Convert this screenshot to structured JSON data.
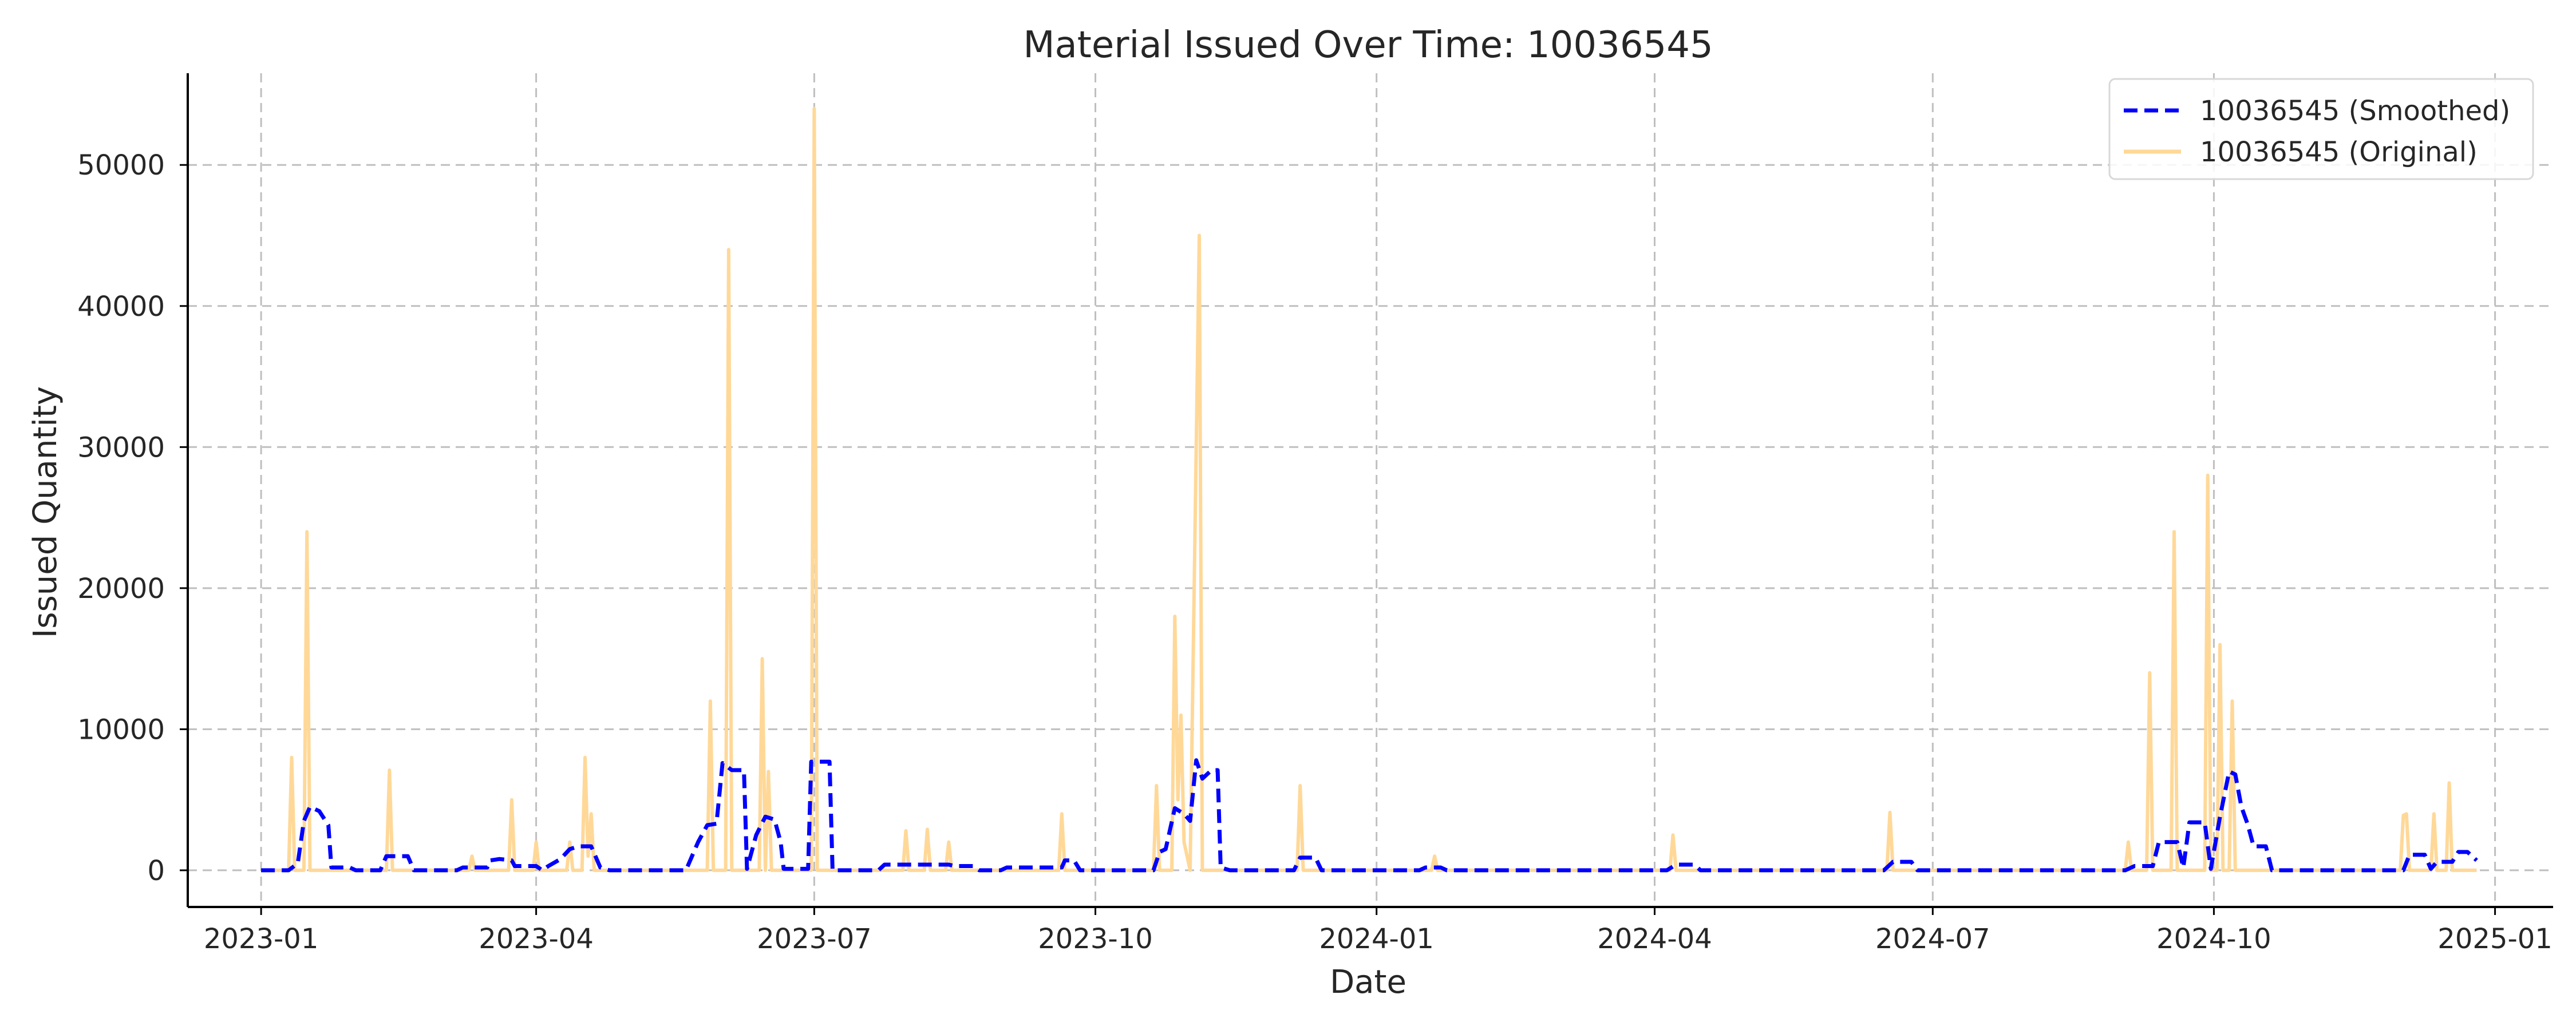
{
  "chart_data": {
    "type": "line",
    "title": "Material Issued Over Time: 10036545",
    "xlabel": "Date",
    "ylabel": "Issued Quantity",
    "x_axis": "date",
    "xlim": [
      "2022-12-08",
      "2025-01-20"
    ],
    "ylim": [
      -2600,
      56500
    ],
    "x_ticks": [
      "2023-01",
      "2023-04",
      "2023-07",
      "2023-10",
      "2024-01",
      "2024-04",
      "2024-07",
      "2024-10",
      "2025-01"
    ],
    "y_ticks": [
      0,
      10000,
      20000,
      30000,
      40000,
      50000
    ],
    "grid": true,
    "legend": "top-right",
    "series": [
      {
        "name": "10036545 (Smoothed)",
        "style": "dashed",
        "color": "#0000ff",
        "points": [
          [
            "2023-01-01",
            0
          ],
          [
            "2023-01-10",
            0
          ],
          [
            "2023-01-13",
            500
          ],
          [
            "2023-01-15",
            3500
          ],
          [
            "2023-01-17",
            4500
          ],
          [
            "2023-01-20",
            4200
          ],
          [
            "2023-01-23",
            3200
          ],
          [
            "2023-01-24",
            200
          ],
          [
            "2023-01-30",
            200
          ],
          [
            "2023-02-01",
            0
          ],
          [
            "2023-02-09",
            0
          ],
          [
            "2023-02-11",
            1000
          ],
          [
            "2023-02-18",
            1000
          ],
          [
            "2023-02-20",
            0
          ],
          [
            "2023-03-06",
            0
          ],
          [
            "2023-03-08",
            200
          ],
          [
            "2023-03-16",
            200
          ],
          [
            "2023-03-17",
            700
          ],
          [
            "2023-03-20",
            800
          ],
          [
            "2023-03-24",
            700
          ],
          [
            "2023-03-25",
            300
          ],
          [
            "2023-04-01",
            300
          ],
          [
            "2023-04-03",
            0
          ],
          [
            "2023-04-05",
            300
          ],
          [
            "2023-04-09",
            800
          ],
          [
            "2023-04-12",
            1500
          ],
          [
            "2023-04-15",
            1700
          ],
          [
            "2023-04-19",
            1700
          ],
          [
            "2023-04-22",
            200
          ],
          [
            "2023-04-25",
            0
          ],
          [
            "2023-05-20",
            0
          ],
          [
            "2023-05-24",
            2000
          ],
          [
            "2023-05-27",
            3200
          ],
          [
            "2023-05-30",
            3300
          ],
          [
            "2023-06-01",
            7600
          ],
          [
            "2023-06-04",
            7100
          ],
          [
            "2023-06-08",
            7100
          ],
          [
            "2023-06-09",
            100
          ],
          [
            "2023-06-12",
            2500
          ],
          [
            "2023-06-15",
            3800
          ],
          [
            "2023-06-18",
            3600
          ],
          [
            "2023-06-20",
            2000
          ],
          [
            "2023-06-21",
            100
          ],
          [
            "2023-06-29",
            100
          ],
          [
            "2023-06-30",
            7700
          ],
          [
            "2023-07-06",
            7700
          ],
          [
            "2023-07-07",
            0
          ],
          [
            "2023-07-22",
            0
          ],
          [
            "2023-07-24",
            400
          ],
          [
            "2023-08-14",
            400
          ],
          [
            "2023-08-16",
            300
          ],
          [
            "2023-08-22",
            300
          ],
          [
            "2023-08-24",
            0
          ],
          [
            "2023-08-31",
            0
          ],
          [
            "2023-09-02",
            200
          ],
          [
            "2023-09-20",
            200
          ],
          [
            "2023-09-21",
            700
          ],
          [
            "2023-09-24",
            700
          ],
          [
            "2023-09-26",
            0
          ],
          [
            "2023-10-20",
            0
          ],
          [
            "2023-10-22",
            1300
          ],
          [
            "2023-10-24",
            1500
          ],
          [
            "2023-10-27",
            4400
          ],
          [
            "2023-10-30",
            4000
          ],
          [
            "2023-11-01",
            3500
          ],
          [
            "2023-11-03",
            7800
          ],
          [
            "2023-11-05",
            6500
          ],
          [
            "2023-11-08",
            7100
          ],
          [
            "2023-11-10",
            7100
          ],
          [
            "2023-11-11",
            200
          ],
          [
            "2023-11-14",
            0
          ],
          [
            "2023-12-05",
            0
          ],
          [
            "2023-12-07",
            900
          ],
          [
            "2023-12-12",
            900
          ],
          [
            "2023-12-14",
            0
          ],
          [
            "2024-01-15",
            0
          ],
          [
            "2024-01-17",
            200
          ],
          [
            "2024-01-22",
            200
          ],
          [
            "2024-01-24",
            0
          ],
          [
            "2024-04-05",
            0
          ],
          [
            "2024-04-08",
            400
          ],
          [
            "2024-04-14",
            400
          ],
          [
            "2024-04-16",
            0
          ],
          [
            "2024-06-15",
            0
          ],
          [
            "2024-06-18",
            600
          ],
          [
            "2024-06-24",
            600
          ],
          [
            "2024-06-26",
            0
          ],
          [
            "2024-09-02",
            0
          ],
          [
            "2024-09-05",
            300
          ],
          [
            "2024-09-11",
            300
          ],
          [
            "2024-09-13",
            2000
          ],
          [
            "2024-09-19",
            2000
          ],
          [
            "2024-09-21",
            200
          ],
          [
            "2024-09-23",
            3400
          ],
          [
            "2024-09-28",
            3400
          ],
          [
            "2024-09-30",
            100
          ],
          [
            "2024-10-03",
            3800
          ],
          [
            "2024-10-06",
            7000
          ],
          [
            "2024-10-08",
            6800
          ],
          [
            "2024-10-10",
            4500
          ],
          [
            "2024-10-12",
            3300
          ],
          [
            "2024-10-14",
            1700
          ],
          [
            "2024-10-18",
            1700
          ],
          [
            "2024-10-20",
            0
          ],
          [
            "2024-12-02",
            0
          ],
          [
            "2024-12-04",
            1100
          ],
          [
            "2024-12-09",
            1100
          ],
          [
            "2024-12-11",
            100
          ],
          [
            "2024-12-13",
            600
          ],
          [
            "2024-12-18",
            600
          ],
          [
            "2024-12-20",
            1300
          ],
          [
            "2024-12-23",
            1300
          ],
          [
            "2024-12-26",
            700
          ]
        ]
      },
      {
        "name": "10036545 (Original)",
        "style": "solid",
        "color": "#ffd898",
        "points": [
          [
            "2023-01-01",
            0
          ],
          [
            "2023-01-10",
            0
          ],
          [
            "2023-01-11",
            8000
          ],
          [
            "2023-01-12",
            0
          ],
          [
            "2023-01-15",
            0
          ],
          [
            "2023-01-16",
            24000
          ],
          [
            "2023-01-17",
            0
          ],
          [
            "2023-02-11",
            0
          ],
          [
            "2023-02-12",
            7100
          ],
          [
            "2023-02-13",
            0
          ],
          [
            "2023-03-10",
            0
          ],
          [
            "2023-03-11",
            1000
          ],
          [
            "2023-03-12",
            0
          ],
          [
            "2023-03-23",
            0
          ],
          [
            "2023-03-24",
            5000
          ],
          [
            "2023-03-25",
            0
          ],
          [
            "2023-03-31",
            0
          ],
          [
            "2023-04-01",
            2000
          ],
          [
            "2023-04-02",
            0
          ],
          [
            "2023-04-11",
            0
          ],
          [
            "2023-04-12",
            2000
          ],
          [
            "2023-04-13",
            0
          ],
          [
            "2023-04-16",
            0
          ],
          [
            "2023-04-17",
            8000
          ],
          [
            "2023-04-18",
            1000
          ],
          [
            "2023-04-19",
            4000
          ],
          [
            "2023-04-20",
            0
          ],
          [
            "2023-05-27",
            0
          ],
          [
            "2023-05-28",
            12000
          ],
          [
            "2023-05-29",
            0
          ],
          [
            "2023-06-02",
            0
          ],
          [
            "2023-06-03",
            44000
          ],
          [
            "2023-06-04",
            0
          ],
          [
            "2023-06-13",
            0
          ],
          [
            "2023-06-14",
            15000
          ],
          [
            "2023-06-15",
            0
          ],
          [
            "2023-06-16",
            7000
          ],
          [
            "2023-06-17",
            0
          ],
          [
            "2023-06-30",
            0
          ],
          [
            "2023-07-01",
            54000
          ],
          [
            "2023-07-02",
            0
          ],
          [
            "2023-07-30",
            0
          ],
          [
            "2023-07-31",
            2800
          ],
          [
            "2023-08-01",
            0
          ],
          [
            "2023-08-06",
            0
          ],
          [
            "2023-08-07",
            2900
          ],
          [
            "2023-08-08",
            0
          ],
          [
            "2023-08-13",
            0
          ],
          [
            "2023-08-14",
            2000
          ],
          [
            "2023-08-15",
            0
          ],
          [
            "2023-09-19",
            0
          ],
          [
            "2023-09-20",
            4000
          ],
          [
            "2023-09-21",
            0
          ],
          [
            "2023-10-20",
            0
          ],
          [
            "2023-10-21",
            6000
          ],
          [
            "2023-10-22",
            0
          ],
          [
            "2023-10-26",
            0
          ],
          [
            "2023-10-27",
            18000
          ],
          [
            "2023-10-28",
            5000
          ],
          [
            "2023-10-29",
            11000
          ],
          [
            "2023-10-30",
            2000
          ],
          [
            "2023-11-01",
            0
          ],
          [
            "2023-11-04",
            45000
          ],
          [
            "2023-11-05",
            0
          ],
          [
            "2023-12-06",
            0
          ],
          [
            "2023-12-07",
            6000
          ],
          [
            "2023-12-08",
            0
          ],
          [
            "2024-01-19",
            0
          ],
          [
            "2024-01-20",
            1000
          ],
          [
            "2024-01-21",
            0
          ],
          [
            "2024-04-06",
            0
          ],
          [
            "2024-04-07",
            2500
          ],
          [
            "2024-04-08",
            0
          ],
          [
            "2024-06-16",
            0
          ],
          [
            "2024-06-17",
            4100
          ],
          [
            "2024-06-18",
            0
          ],
          [
            "2024-09-02",
            0
          ],
          [
            "2024-09-03",
            2000
          ],
          [
            "2024-09-04",
            0
          ],
          [
            "2024-09-09",
            0
          ],
          [
            "2024-09-10",
            14000
          ],
          [
            "2024-09-11",
            0
          ],
          [
            "2024-09-17",
            0
          ],
          [
            "2024-09-18",
            24000
          ],
          [
            "2024-09-19",
            0
          ],
          [
            "2024-09-28",
            0
          ],
          [
            "2024-09-29",
            28000
          ],
          [
            "2024-09-30",
            0
          ],
          [
            "2024-10-02",
            0
          ],
          [
            "2024-10-03",
            16000
          ],
          [
            "2024-10-04",
            0
          ],
          [
            "2024-10-06",
            0
          ],
          [
            "2024-10-07",
            12000
          ],
          [
            "2024-10-08",
            0
          ],
          [
            "2024-12-01",
            0
          ],
          [
            "2024-12-02",
            3900
          ],
          [
            "2024-12-03",
            4000
          ],
          [
            "2024-12-04",
            0
          ],
          [
            "2024-12-11",
            0
          ],
          [
            "2024-12-12",
            4000
          ],
          [
            "2024-12-13",
            0
          ],
          [
            "2024-12-16",
            0
          ],
          [
            "2024-12-17",
            6200
          ],
          [
            "2024-12-18",
            0
          ],
          [
            "2024-12-26",
            0
          ]
        ]
      }
    ]
  }
}
